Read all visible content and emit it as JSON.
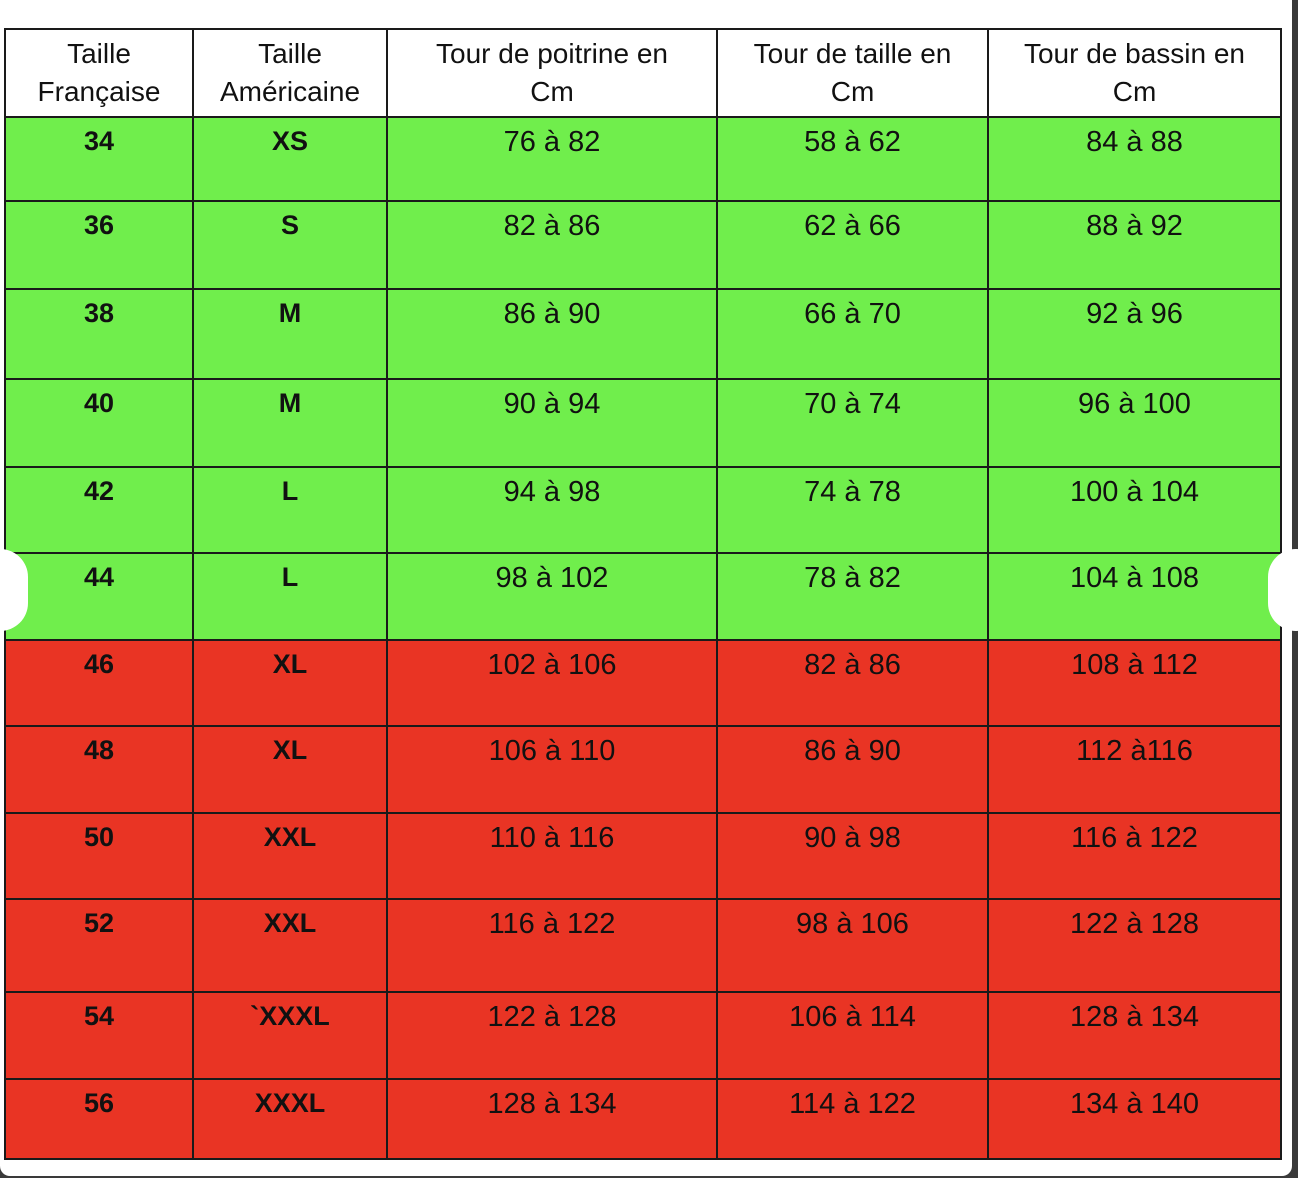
{
  "table": {
    "headers": [
      {
        "line1": "Taille",
        "line2": "Française"
      },
      {
        "line1": "Taille",
        "line2": "Américaine"
      },
      {
        "line1": "Tour de poitrine en",
        "line2": "Cm"
      },
      {
        "line1": "Tour de taille en",
        "line2": "Cm"
      },
      {
        "line1": "Tour de bassin en",
        "line2": "Cm"
      }
    ],
    "rows": [
      {
        "fr": "34",
        "us": "XS",
        "poitrine": "76 à 82",
        "taille": "58 à 62",
        "bassin": "84 à 88",
        "status": "green"
      },
      {
        "fr": "36",
        "us": "S",
        "poitrine": "82 à 86",
        "taille": "62 à 66",
        "bassin": "88 à 92",
        "status": "green"
      },
      {
        "fr": "38",
        "us": "M",
        "poitrine": "86 à 90",
        "taille": "66 à 70",
        "bassin": "92 à 96",
        "status": "green"
      },
      {
        "fr": "40",
        "us": "M",
        "poitrine": "90 à 94",
        "taille": "70 à 74",
        "bassin": "96 à 100",
        "status": "green"
      },
      {
        "fr": "42",
        "us": "L",
        "poitrine": "94 à 98",
        "taille": "74 à 78",
        "bassin": "100 à 104",
        "status": "green"
      },
      {
        "fr": "44",
        "us": "L",
        "poitrine": "98 à 102",
        "taille": "78 à 82",
        "bassin": "104 à 108",
        "status": "green"
      },
      {
        "fr": "46",
        "us": "XL",
        "poitrine": "102 à 106",
        "taille": "82 à 86",
        "bassin": "108 à 112",
        "status": "red"
      },
      {
        "fr": "48",
        "us": "XL",
        "poitrine": "106 à 110",
        "taille": "86 à 90",
        "bassin": "112 à116",
        "status": "red"
      },
      {
        "fr": "50",
        "us": "XXL",
        "poitrine": "110 à 116",
        "taille": "90 à 98",
        "bassin": "116 à 122",
        "status": "red"
      },
      {
        "fr": "52",
        "us": "XXL",
        "poitrine": "116 à 122",
        "taille": "98 à 106",
        "bassin": "122 à 128",
        "status": "red"
      },
      {
        "fr": "54",
        "us": "`XXXL",
        "poitrine": "122 à 128",
        "taille": "106 à 114",
        "bassin": "128 à 134",
        "status": "red"
      },
      {
        "fr": "56",
        "us": "XXXL",
        "poitrine": "128 à 134",
        "taille": "114 à 122",
        "bassin": "134 à 140",
        "status": "red"
      }
    ]
  },
  "colors": {
    "available": "#70ee4c",
    "unavailable": "#e93424",
    "border": "#1a1a1a",
    "header_background": "#ffffff"
  }
}
